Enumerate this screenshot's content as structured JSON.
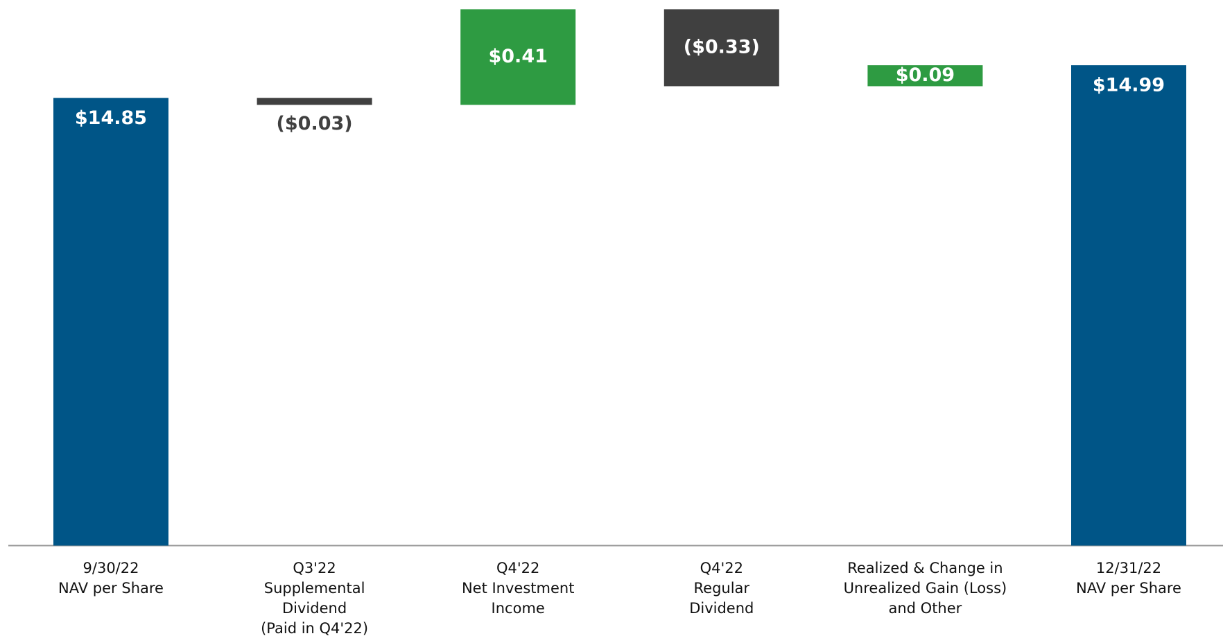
{
  "chart_data": {
    "type": "waterfall",
    "categories": [
      [
        "9/30/22",
        "NAV per Share"
      ],
      [
        "Q3'22",
        "Supplemental",
        "Dividend",
        "(Paid in Q4'22)"
      ],
      [
        "Q4'22",
        "Net Investment",
        "Income"
      ],
      [
        "Q4'22",
        "Regular",
        "Dividend"
      ],
      [
        "Realized & Change in",
        "Unrealized Gain (Loss)",
        "and Other"
      ],
      [
        "12/31/22",
        "NAV per Share"
      ]
    ],
    "values": [
      14.85,
      -0.03,
      0.41,
      -0.33,
      0.09,
      14.99
    ],
    "value_labels": [
      "$14.85",
      "($0.03)",
      "$0.41",
      "($0.33)",
      "$0.09",
      "$14.99"
    ],
    "totals": [
      true,
      false,
      false,
      false,
      false,
      true
    ],
    "colors": [
      "#005587",
      "#404040",
      "#2e9b42",
      "#404040",
      "#2e9b42",
      "#005587"
    ],
    "ylim": [
      12.93,
      15.24
    ]
  }
}
